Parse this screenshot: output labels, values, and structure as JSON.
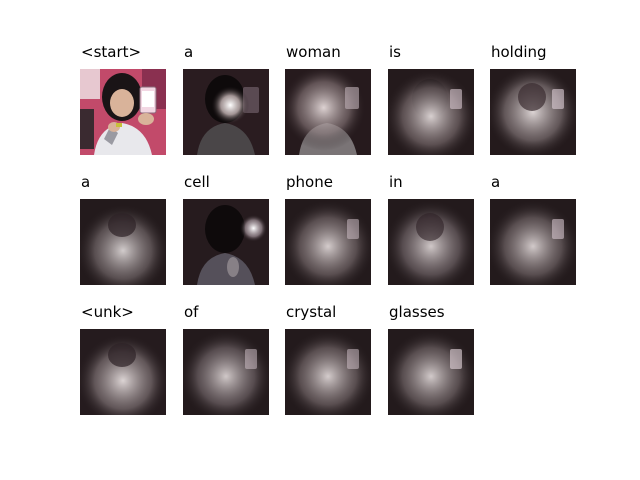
{
  "figure": {
    "panels": [
      {
        "word": "<start>"
      },
      {
        "word": "a"
      },
      {
        "word": "woman"
      },
      {
        "word": "is"
      },
      {
        "word": "holding"
      },
      {
        "word": "a"
      },
      {
        "word": "cell"
      },
      {
        "word": "phone"
      },
      {
        "word": "in"
      },
      {
        "word": "a"
      },
      {
        "word": "<unk>"
      },
      {
        "word": "of"
      },
      {
        "word": "crystal"
      },
      {
        "word": "glasses"
      }
    ]
  }
}
